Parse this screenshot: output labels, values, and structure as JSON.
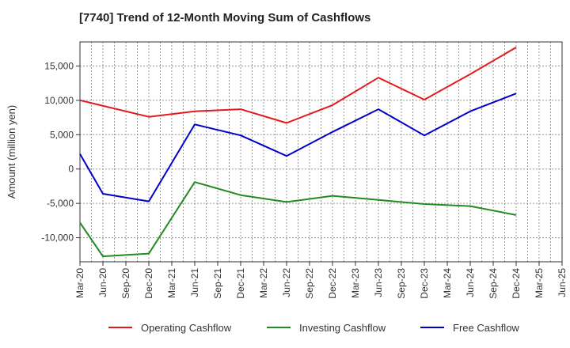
{
  "title": "[7740]  Trend of 12-Month Moving Sum of Cashflows",
  "chart_data": {
    "type": "line",
    "title": "[7740]  Trend of 12-Month Moving Sum of Cashflows",
    "xlabel": "",
    "ylabel": "Amount (million yen)",
    "ylim": [
      -13500,
      18500
    ],
    "yticks": [
      -10000,
      -5000,
      0,
      5000,
      10000,
      15000
    ],
    "ytick_labels": [
      "-10,000",
      "-5,000",
      "0",
      "5,000",
      "10,000",
      "15,000"
    ],
    "categories": [
      "Mar-20",
      "Jun-20",
      "Sep-20",
      "Dec-20",
      "Mar-21",
      "Jun-21",
      "Sep-21",
      "Dec-21",
      "Mar-22",
      "Jun-22",
      "Sep-22",
      "Dec-22",
      "Mar-23",
      "Jun-23",
      "Sep-23",
      "Dec-23",
      "Mar-24",
      "Jun-24",
      "Sep-24",
      "Dec-24",
      "Mar-25",
      "Jun-25"
    ],
    "grid": true,
    "legend_position": "bottom",
    "series": [
      {
        "name": "Operating Cashflow",
        "color": "#e31a1c",
        "points": [
          [
            "Mar-20",
            10000
          ],
          [
            "Dec-20",
            7600
          ],
          [
            "Jun-21",
            8400
          ],
          [
            "Dec-21",
            8700
          ],
          [
            "Jun-22",
            6700
          ],
          [
            "Dec-22",
            9300
          ],
          [
            "Jun-23",
            13300
          ],
          [
            "Dec-23",
            10100
          ],
          [
            "Jun-24",
            13800
          ],
          [
            "Dec-24",
            17700
          ]
        ]
      },
      {
        "name": "Investing Cashflow",
        "color": "#228b22",
        "points": [
          [
            "Mar-20",
            -7800
          ],
          [
            "Jun-20",
            -12700
          ],
          [
            "Dec-20",
            -12300
          ],
          [
            "Jun-21",
            -1900
          ],
          [
            "Dec-21",
            -3800
          ],
          [
            "Jun-22",
            -4800
          ],
          [
            "Dec-22",
            -3900
          ],
          [
            "Jun-23",
            -4500
          ],
          [
            "Dec-23",
            -5100
          ],
          [
            "Jun-24",
            -5400
          ],
          [
            "Dec-24",
            -6700
          ]
        ]
      },
      {
        "name": "Free Cashflow",
        "color": "#0000cc",
        "points": [
          [
            "Mar-20",
            2200
          ],
          [
            "Jun-20",
            -3600
          ],
          [
            "Dec-20",
            -4700
          ],
          [
            "Jun-21",
            6500
          ],
          [
            "Dec-21",
            4900
          ],
          [
            "Jun-22",
            1900
          ],
          [
            "Dec-22",
            5400
          ],
          [
            "Jun-23",
            8700
          ],
          [
            "Dec-23",
            4900
          ],
          [
            "Jun-24",
            8400
          ],
          [
            "Dec-24",
            11000
          ]
        ]
      }
    ]
  }
}
